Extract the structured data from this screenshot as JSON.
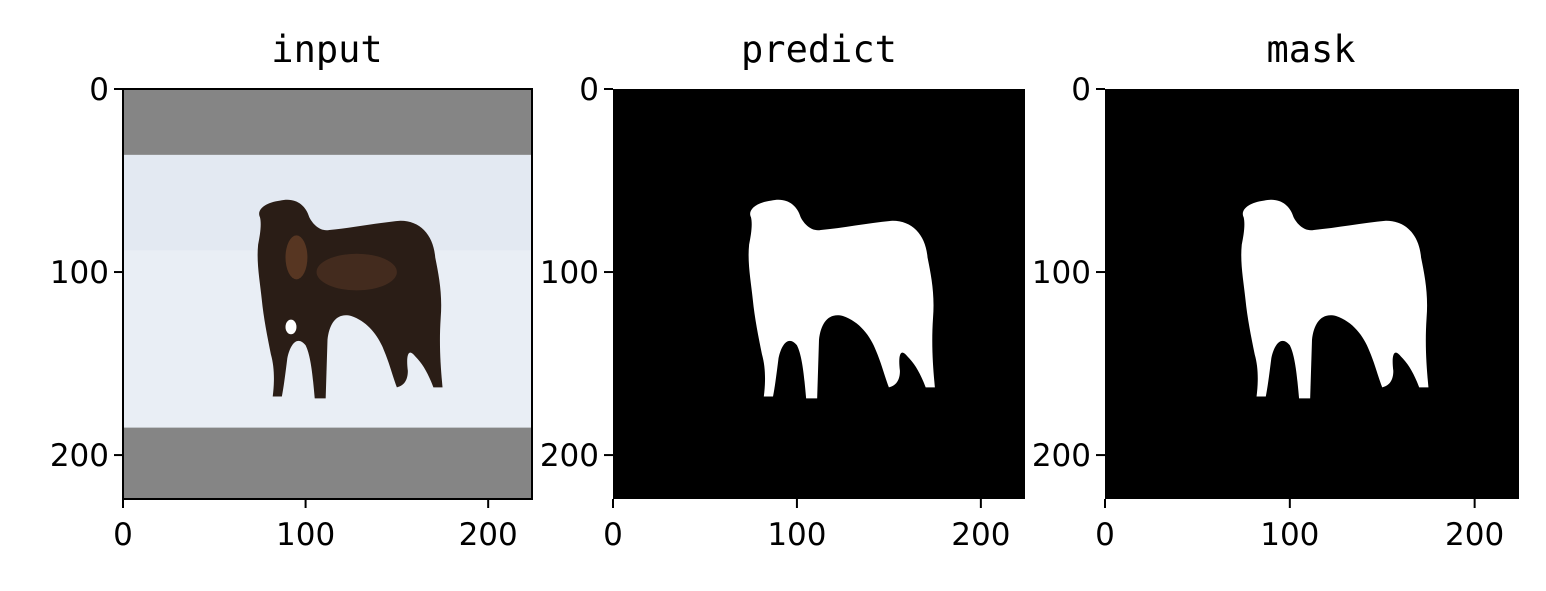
{
  "chart_data": [
    {
      "type": "image",
      "title": "input",
      "content": "dog-photo",
      "xlim": [
        0,
        224
      ],
      "ylim": [
        224,
        0
      ],
      "xticks": [
        0,
        100,
        200
      ],
      "yticks": [
        0,
        100,
        200
      ],
      "xtick_labels": [
        "0",
        "100",
        "200"
      ],
      "ytick_labels": [
        "0",
        "100",
        "200"
      ],
      "padding_color": "#858585",
      "snow_color": "#e9eef5",
      "subject_color": "#2a1d16"
    },
    {
      "type": "image",
      "title": "predict",
      "content": "binary-mask",
      "xlim": [
        0,
        224
      ],
      "ylim": [
        224,
        0
      ],
      "xticks": [
        0,
        100,
        200
      ],
      "yticks": [
        0,
        100,
        200
      ],
      "xtick_labels": [
        "0",
        "100",
        "200"
      ],
      "ytick_labels": [
        "0",
        "100",
        "200"
      ],
      "background_color": "#000000",
      "foreground_color": "#ffffff"
    },
    {
      "type": "image",
      "title": "mask",
      "content": "binary-mask",
      "xlim": [
        0,
        224
      ],
      "ylim": [
        224,
        0
      ],
      "xticks": [
        0,
        100,
        200
      ],
      "yticks": [
        0,
        100,
        200
      ],
      "xtick_labels": [
        "0",
        "100",
        "200"
      ],
      "ytick_labels": [
        "0",
        "100",
        "200"
      ],
      "background_color": "#000000",
      "foreground_color": "#ffffff"
    }
  ]
}
